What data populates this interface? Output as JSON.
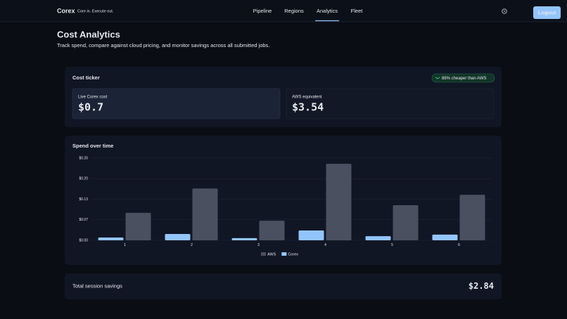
{
  "nav": {
    "brand": "Corex",
    "tagline": "Core in. Execute out.",
    "links": [
      "Pipeline",
      "Regions",
      "Analytics",
      "Fleet"
    ],
    "active_index": 2,
    "logout": "Logout"
  },
  "header": {
    "title": "Cost Analytics",
    "subtitle": "Track spend, compare against cloud pricing, and monitor savings across all submitted jobs."
  },
  "ticker": {
    "title": "Cost ticker",
    "badge": "86% cheaper than AWS",
    "live_label": "Live Corex cost",
    "live_value": "$0.7",
    "aws_label": "AWS equivalent",
    "aws_value": "$3.54"
  },
  "chart_data": {
    "type": "bar",
    "title": "Spend over time",
    "categories": [
      "1",
      "2",
      "3",
      "4",
      "5",
      "6"
    ],
    "series": [
      {
        "name": "AWS",
        "color": "#4b5060",
        "values": [
          0.087,
          0.164,
          0.062,
          0.242,
          0.111,
          0.144
        ]
      },
      {
        "name": "Corex",
        "color": "#93c5fd",
        "values": [
          0.009,
          0.02,
          0.007,
          0.031,
          0.013,
          0.018
        ]
      }
    ],
    "ylim": [
      0,
      0.26
    ],
    "yticks": [
      {
        "value": 0,
        "label": "$0.00"
      },
      {
        "value": 0.065,
        "label": "$0.07"
      },
      {
        "value": 0.13,
        "label": "$0.13"
      },
      {
        "value": 0.195,
        "label": "$0.20"
      },
      {
        "value": 0.26,
        "label": "$0.26"
      }
    ],
    "grid": true
  },
  "savings": {
    "label": "Total session savings",
    "value": "$2.84"
  }
}
